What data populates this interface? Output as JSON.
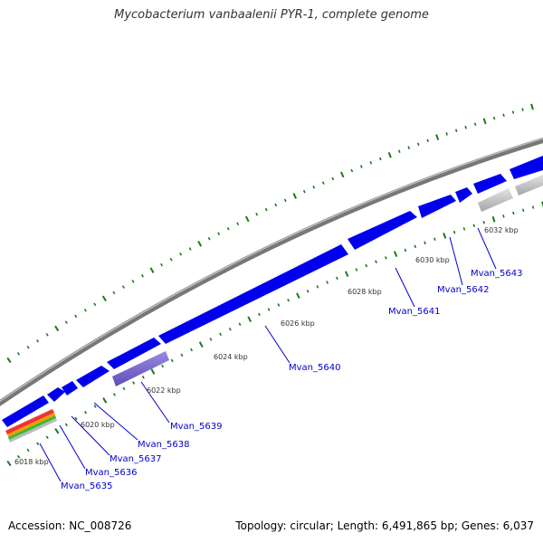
{
  "title": "Mycobacterium vanbaalenii PYR-1, complete genome",
  "accession": "Accession: NC_008726",
  "summary": "Topology: circular; Length: 6,491,865 bp; Genes: 6,037",
  "colors": {
    "backbone": "#8c8c8c",
    "gene_forward": "#0000ee",
    "gene_pseudo": "#7b68cc",
    "gene_grey": "#c0c0c0",
    "tick": "#1a7a1a",
    "label": "#0000cc"
  },
  "scale_labels": [
    "6018 kbp",
    "6020 kbp",
    "6022 kbp",
    "6024 kbp",
    "6026 kbp",
    "6028 kbp",
    "6030 kbp",
    "6032 kbp"
  ],
  "genes": [
    {
      "name": "Mvan_5635"
    },
    {
      "name": "Mvan_5636"
    },
    {
      "name": "Mvan_5637"
    },
    {
      "name": "Mvan_5638"
    },
    {
      "name": "Mvan_5639"
    },
    {
      "name": "Mvan_5640"
    },
    {
      "name": "Mvan_5641"
    },
    {
      "name": "Mvan_5642"
    },
    {
      "name": "Mvan_5643"
    }
  ]
}
